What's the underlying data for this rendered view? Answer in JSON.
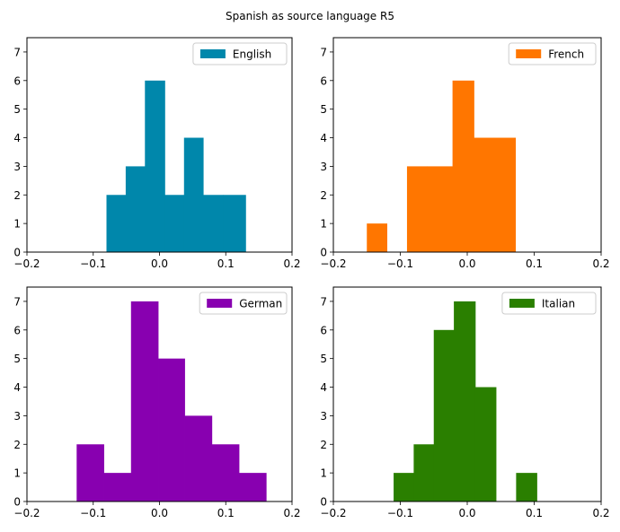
{
  "figure": {
    "suptitle": "Spanish as source language R5"
  },
  "chart_data": [
    {
      "type": "bar",
      "subtype": "histogram",
      "series": [
        {
          "name": "English",
          "color": "#0087ab"
        }
      ],
      "bins": [
        {
          "x0": -0.08,
          "x1": -0.051,
          "count": 2
        },
        {
          "x0": -0.051,
          "x1": -0.022,
          "count": 3
        },
        {
          "x0": -0.022,
          "x1": 0.008,
          "count": 6
        },
        {
          "x0": 0.008,
          "x1": 0.037,
          "count": 2
        },
        {
          "x0": 0.037,
          "x1": 0.066,
          "count": 4
        },
        {
          "x0": 0.066,
          "x1": 0.096,
          "count": 2
        },
        {
          "x0": 0.096,
          "x1": 0.13,
          "count": 2
        }
      ],
      "xlim": [
        -0.2,
        0.2
      ],
      "ylim": [
        0,
        7.5
      ],
      "xticks": [
        "−0.2",
        "−0.1",
        "0.0",
        "0.1",
        "0.2"
      ],
      "yticks": [
        "0",
        "1",
        "2",
        "3",
        "4",
        "5",
        "6",
        "7"
      ],
      "legend_position": "upper right"
    },
    {
      "type": "bar",
      "subtype": "histogram",
      "series": [
        {
          "name": "French",
          "color": "#ff7600"
        }
      ],
      "bins": [
        {
          "x0": -0.15,
          "x1": -0.12,
          "count": 1
        },
        {
          "x0": -0.12,
          "x1": -0.09,
          "count": 0
        },
        {
          "x0": -0.09,
          "x1": -0.06,
          "count": 3
        },
        {
          "x0": -0.06,
          "x1": -0.022,
          "count": 3
        },
        {
          "x0": -0.022,
          "x1": 0.01,
          "count": 6
        },
        {
          "x0": 0.01,
          "x1": 0.04,
          "count": 4
        },
        {
          "x0": 0.04,
          "x1": 0.072,
          "count": 4
        }
      ],
      "xlim": [
        -0.2,
        0.2
      ],
      "ylim": [
        0,
        7.5
      ],
      "xticks": [
        "−0.2",
        "−0.1",
        "0.0",
        "0.1",
        "0.2"
      ],
      "yticks": [
        "0",
        "1",
        "2",
        "3",
        "4",
        "5",
        "6",
        "7"
      ],
      "legend_position": "upper right"
    },
    {
      "type": "bar",
      "subtype": "histogram",
      "series": [
        {
          "name": "German",
          "color": "#8800b0"
        }
      ],
      "bins": [
        {
          "x0": -0.125,
          "x1": -0.084,
          "count": 2
        },
        {
          "x0": -0.084,
          "x1": -0.043,
          "count": 1
        },
        {
          "x0": -0.043,
          "x1": -0.002,
          "count": 7
        },
        {
          "x0": -0.002,
          "x1": 0.038,
          "count": 5
        },
        {
          "x0": 0.038,
          "x1": 0.079,
          "count": 3
        },
        {
          "x0": 0.079,
          "x1": 0.12,
          "count": 2
        },
        {
          "x0": 0.12,
          "x1": 0.161,
          "count": 1
        }
      ],
      "xlim": [
        -0.2,
        0.2
      ],
      "ylim": [
        0,
        7.5
      ],
      "xticks": [
        "−0.2",
        "−0.1",
        "0.0",
        "0.1",
        "0.2"
      ],
      "yticks": [
        "0",
        "1",
        "2",
        "3",
        "4",
        "5",
        "6",
        "7"
      ],
      "legend_position": "upper right"
    },
    {
      "type": "bar",
      "subtype": "histogram",
      "series": [
        {
          "name": "Italian",
          "color": "#2a7f00"
        }
      ],
      "bins": [
        {
          "x0": -0.11,
          "x1": -0.08,
          "count": 1
        },
        {
          "x0": -0.08,
          "x1": -0.05,
          "count": 2
        },
        {
          "x0": -0.05,
          "x1": -0.02,
          "count": 6
        },
        {
          "x0": -0.02,
          "x1": 0.012,
          "count": 7
        },
        {
          "x0": 0.012,
          "x1": 0.043,
          "count": 4
        },
        {
          "x0": 0.043,
          "x1": 0.073,
          "count": 0
        },
        {
          "x0": 0.073,
          "x1": 0.104,
          "count": 1
        }
      ],
      "xlim": [
        -0.2,
        0.2
      ],
      "ylim": [
        0,
        7.5
      ],
      "xticks": [
        "−0.2",
        "−0.1",
        "0.0",
        "0.1",
        "0.2"
      ],
      "yticks": [
        "0",
        "1",
        "2",
        "3",
        "4",
        "5",
        "6",
        "7"
      ],
      "legend_position": "upper right"
    }
  ]
}
